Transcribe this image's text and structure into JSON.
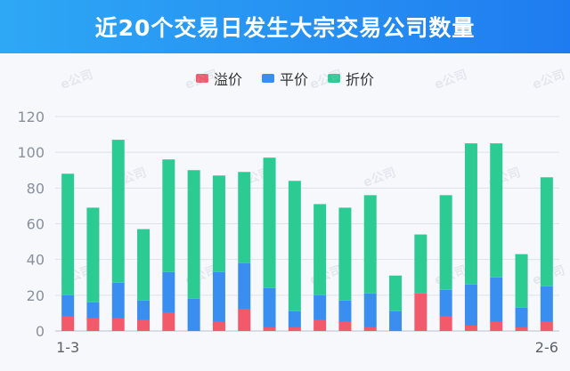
{
  "header": {
    "title": "近20个交易日发生大宗交易公司数量"
  },
  "colors": {
    "premium": "#f2596b",
    "par": "#3a8ef0",
    "discount": "#2ccb93",
    "header": "#1f7cf0"
  },
  "watermark": "e公司",
  "chart_data": {
    "type": "bar",
    "stacked": true,
    "categories": [
      "1-3",
      "",
      "",
      "",
      "",
      "",
      "",
      "",
      "",
      "",
      "",
      "",
      "",
      "",
      "",
      "",
      "",
      "",
      "",
      "2-6"
    ],
    "series": [
      {
        "name": "溢价",
        "values": [
          8,
          7,
          7,
          6,
          10,
          0,
          5,
          12,
          2,
          2,
          6,
          5,
          2,
          0,
          21,
          8,
          3,
          5,
          2,
          5
        ]
      },
      {
        "name": "平价",
        "values": [
          12,
          9,
          20,
          11,
          23,
          18,
          28,
          26,
          22,
          9,
          14,
          12,
          19,
          11,
          0,
          15,
          23,
          25,
          11,
          20
        ]
      },
      {
        "name": "折价",
        "values": [
          68,
          53,
          80,
          40,
          63,
          72,
          54,
          51,
          73,
          73,
          51,
          52,
          55,
          20,
          33,
          53,
          79,
          75,
          30,
          61
        ]
      }
    ],
    "ylim": [
      0,
      120
    ],
    "yticks": [
      0,
      20,
      40,
      60,
      80,
      100,
      120
    ],
    "grid": true,
    "legend_position": "top-center"
  }
}
